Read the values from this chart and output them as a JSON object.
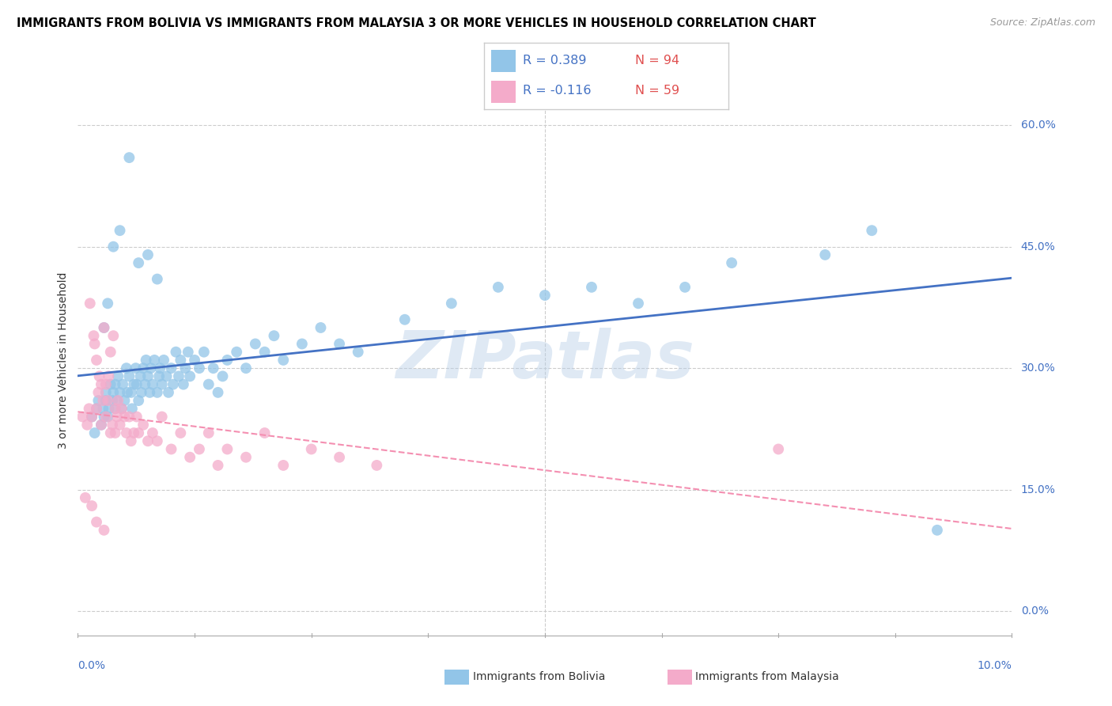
{
  "title": "IMMIGRANTS FROM BOLIVIA VS IMMIGRANTS FROM MALAYSIA 3 OR MORE VEHICLES IN HOUSEHOLD CORRELATION CHART",
  "source": "Source: ZipAtlas.com",
  "ylabel": "3 or more Vehicles in Household",
  "bolivia_color": "#92C5E8",
  "malaysia_color": "#F4ABCA",
  "bolivia_line_color": "#4472C4",
  "malaysia_line_color": "#F48FB1",
  "watermark": "ZIPatlas",
  "legend_r_bolivia": "R = 0.389",
  "legend_n_bolivia": "N = 94",
  "legend_r_malaysia": "R = -0.116",
  "legend_n_malaysia": "N = 59",
  "yticks_pct": [
    0.0,
    15.0,
    30.0,
    45.0,
    60.0
  ],
  "bolivia_x": [
    0.15,
    0.18,
    0.2,
    0.22,
    0.25,
    0.27,
    0.28,
    0.3,
    0.3,
    0.32,
    0.33,
    0.35,
    0.37,
    0.38,
    0.4,
    0.4,
    0.42,
    0.43,
    0.45,
    0.47,
    0.48,
    0.5,
    0.52,
    0.53,
    0.55,
    0.57,
    0.58,
    0.6,
    0.62,
    0.63,
    0.65,
    0.67,
    0.68,
    0.7,
    0.72,
    0.73,
    0.75,
    0.77,
    0.78,
    0.8,
    0.82,
    0.85,
    0.87,
    0.88,
    0.9,
    0.92,
    0.95,
    0.97,
    1.0,
    1.02,
    1.05,
    1.08,
    1.1,
    1.13,
    1.15,
    1.18,
    1.2,
    1.25,
    1.3,
    1.35,
    1.4,
    1.45,
    1.5,
    1.55,
    1.6,
    1.7,
    1.8,
    1.9,
    2.0,
    2.1,
    2.2,
    2.4,
    2.6,
    2.8,
    3.0,
    3.5,
    4.0,
    4.5,
    5.0,
    5.5,
    6.0,
    6.5,
    7.0,
    8.0,
    8.5,
    9.2,
    0.28,
    0.32,
    0.38,
    0.45,
    0.55,
    0.65,
    0.75,
    0.85
  ],
  "bolivia_y": [
    24.0,
    22.0,
    25.0,
    26.0,
    23.0,
    25.0,
    24.0,
    26.0,
    27.0,
    24.0,
    25.0,
    28.0,
    26.0,
    27.0,
    25.0,
    28.0,
    26.0,
    29.0,
    27.0,
    25.0,
    28.0,
    26.0,
    30.0,
    27.0,
    29.0,
    27.0,
    25.0,
    28.0,
    30.0,
    28.0,
    26.0,
    29.0,
    27.0,
    30.0,
    28.0,
    31.0,
    29.0,
    27.0,
    30.0,
    28.0,
    31.0,
    27.0,
    29.0,
    30.0,
    28.0,
    31.0,
    29.0,
    27.0,
    30.0,
    28.0,
    32.0,
    29.0,
    31.0,
    28.0,
    30.0,
    32.0,
    29.0,
    31.0,
    30.0,
    32.0,
    28.0,
    30.0,
    27.0,
    29.0,
    31.0,
    32.0,
    30.0,
    33.0,
    32.0,
    34.0,
    31.0,
    33.0,
    35.0,
    33.0,
    32.0,
    36.0,
    38.0,
    40.0,
    39.0,
    40.0,
    38.0,
    40.0,
    43.0,
    44.0,
    47.0,
    10.0,
    35.0,
    38.0,
    45.0,
    47.0,
    56.0,
    43.0,
    44.0,
    41.0
  ],
  "malaysia_x": [
    0.05,
    0.08,
    0.1,
    0.12,
    0.13,
    0.15,
    0.17,
    0.18,
    0.2,
    0.2,
    0.22,
    0.23,
    0.25,
    0.25,
    0.27,
    0.28,
    0.3,
    0.3,
    0.32,
    0.33,
    0.35,
    0.35,
    0.37,
    0.38,
    0.4,
    0.4,
    0.42,
    0.43,
    0.45,
    0.47,
    0.5,
    0.52,
    0.55,
    0.57,
    0.6,
    0.63,
    0.65,
    0.7,
    0.75,
    0.8,
    0.85,
    0.9,
    1.0,
    1.1,
    1.2,
    1.3,
    1.4,
    1.5,
    1.6,
    1.8,
    2.0,
    2.2,
    2.5,
    2.8,
    3.2,
    7.5,
    0.15,
    0.2,
    0.28
  ],
  "malaysia_y": [
    24.0,
    14.0,
    23.0,
    25.0,
    38.0,
    24.0,
    34.0,
    33.0,
    31.0,
    25.0,
    27.0,
    29.0,
    28.0,
    23.0,
    26.0,
    35.0,
    24.0,
    28.0,
    26.0,
    29.0,
    22.0,
    32.0,
    23.0,
    34.0,
    25.0,
    22.0,
    24.0,
    26.0,
    23.0,
    25.0,
    24.0,
    22.0,
    24.0,
    21.0,
    22.0,
    24.0,
    22.0,
    23.0,
    21.0,
    22.0,
    21.0,
    24.0,
    20.0,
    22.0,
    19.0,
    20.0,
    22.0,
    18.0,
    20.0,
    19.0,
    22.0,
    18.0,
    20.0,
    19.0,
    18.0,
    20.0,
    13.0,
    11.0,
    10.0
  ]
}
